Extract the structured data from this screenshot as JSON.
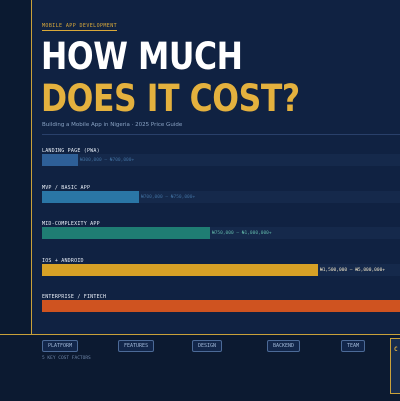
{
  "eyebrow": "MOBILE APP DEVELOPMENT",
  "title_line1": "HOW MUCH",
  "title_line2": "DOES IT COST?",
  "subtitle": "Building a Mobile App in Nigeria · 2025 Price Guide",
  "colors": {
    "background": "#102242",
    "accent": "#e4b13e",
    "bar_landing": "#2e5f97",
    "bar_mvp": "#2a76a6",
    "bar_mid": "#1f7d73",
    "bar_ios_android": "#d7a126",
    "bar_enterprise": "#cf5320"
  },
  "chart_data": {
    "type": "bar",
    "orientation": "horizontal",
    "categories": [
      "LANDING PAGE (PWA)",
      "MVP / BASIC APP",
      "MID-COMPLEXITY APP",
      "IOS + ANDROID",
      "ENTERPRISE / FINTECH"
    ],
    "values": [
      0.1,
      0.27,
      0.47,
      0.77,
      1.0
    ],
    "range_labels": [
      "₦300,000 – ₦700,000+",
      "₦700,000 – ₦750,000+",
      "₦750,000 – ₦1,000,000+",
      "₦1,500,000 – ₦5,000,000+",
      ""
    ],
    "value_unit": "fraction of the widest bar"
  },
  "factors": {
    "chips": [
      "PLATFORM",
      "FEATURES",
      "DESIGN",
      "BACKEND",
      "TEAM"
    ],
    "caption": "5 KEY COST FACTORS"
  },
  "side_card": {
    "mark": "C"
  }
}
